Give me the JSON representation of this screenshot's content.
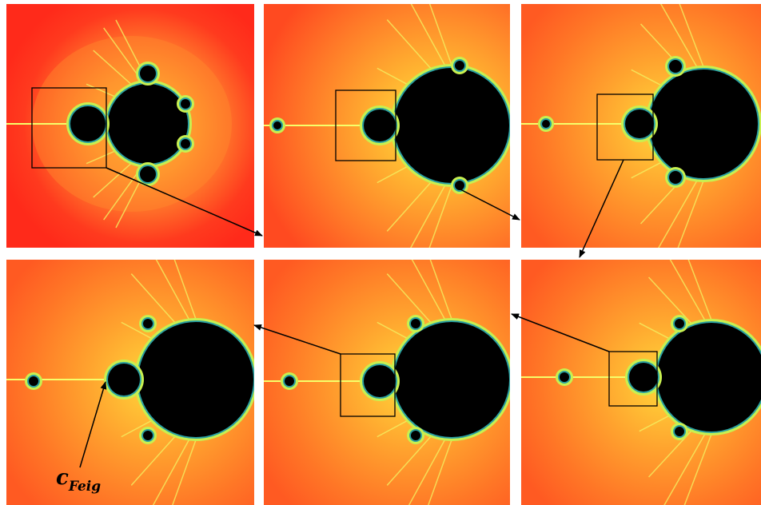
{
  "label": {
    "main": "c",
    "subscript": "Feig"
  }
}
